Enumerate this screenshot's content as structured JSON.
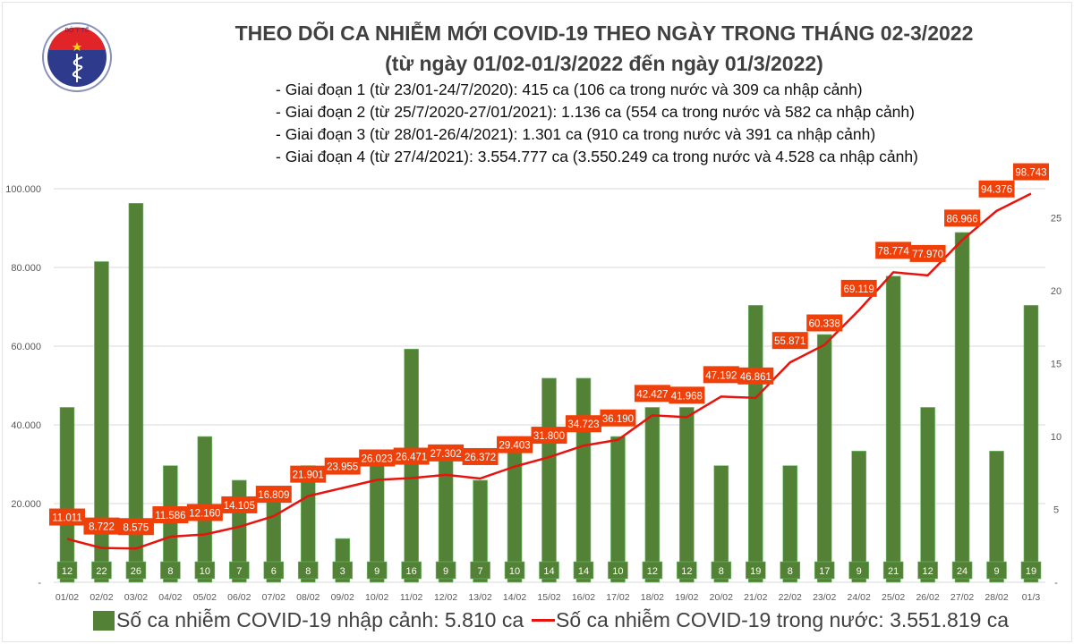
{
  "header": {
    "title": "THEO DÕI CA NHIỄM MỚI COVID-19 THEO NGÀY TRONG THÁNG 02-3/2022",
    "subtitle": "(từ ngày 01/02-01/3/2022 đến ngày 01/3/2022)",
    "notes": [
      "- Giai đoạn 1 (từ 23/01-24/7/2020): 415 ca (106 ca trong nước và 309 ca nhập cảnh)",
      "- Giai đoạn 2 (từ 25/7/2020-27/01/2021): 1.136 ca (554 ca trong nước và 582 ca nhập cảnh)",
      "- Giai đoạn 3 (từ 28/01-26/4/2021): 1.301 ca (910 ca trong nước và 391 ca nhập cảnh)",
      "- Giai đoạn 4 (từ 27/4/2021): 3.554.777 ca (3.550.249 ca trong nước và 4.528 ca nhập cảnh)"
    ],
    "logo_text": [
      "BỘ Y TẾ",
      "MINISTRY OF HEALTH"
    ]
  },
  "chart_data": {
    "type": "bar+line",
    "categories": [
      "01/02",
      "02/02",
      "03/02",
      "04/02",
      "05/02",
      "06/02",
      "07/02",
      "08/02",
      "09/02",
      "10/02",
      "11/02",
      "12/02",
      "13/02",
      "14/02",
      "15/02",
      "16/02",
      "17/02",
      "18/02",
      "19/02",
      "20/02",
      "21/02",
      "22/02",
      "23/02",
      "24/02",
      "25/02",
      "26/02",
      "27/02",
      "28/02",
      "01/3"
    ],
    "series": [
      {
        "name": "Số ca nhiễm COVID-19 nhập cảnh: 5.810 ca",
        "type": "bar",
        "axis": "right",
        "color": "#538135",
        "values": [
          12,
          22,
          26,
          8,
          10,
          7,
          6,
          8,
          3,
          9,
          16,
          9,
          7,
          10,
          14,
          14,
          10,
          12,
          12,
          8,
          19,
          8,
          17,
          9,
          21,
          12,
          24,
          9,
          19
        ],
        "labels": [
          "12",
          "22",
          "26",
          "8",
          "10",
          "7",
          "6",
          "8",
          "3",
          "9",
          "16",
          "9",
          "7",
          "10",
          "14",
          "14",
          "10",
          "12",
          "12",
          "8",
          "19",
          "8",
          "17",
          "9",
          "21",
          "12",
          "24",
          "9",
          "19"
        ]
      },
      {
        "name": "Số ca nhiễm COVID-19 trong nước: 3.551.819 ca",
        "type": "line",
        "axis": "left",
        "color": "#e8130c",
        "values": [
          11011,
          8722,
          8575,
          11586,
          12160,
          14105,
          16809,
          21901,
          23955,
          26023,
          26471,
          27302,
          26372,
          29403,
          31800,
          34723,
          36190,
          42427,
          41968,
          47192,
          46861,
          55871,
          60338,
          69119,
          78774,
          77970,
          86966,
          94376,
          98743
        ],
        "labels": [
          "11.011",
          "8.722",
          "8.575",
          "11.586",
          "12.160",
          "14.105",
          "16.809",
          "21.901",
          "23.955",
          "26.023",
          "26.471",
          "27.302",
          "26.372",
          "29.403",
          "31.800",
          "34.723",
          "36.190",
          "42.427",
          "41.968",
          "47.192",
          "46.861",
          "55.871",
          "60.338",
          "69.119",
          "78.774",
          "77.970",
          "86.966",
          "94.376",
          "98.743"
        ]
      }
    ],
    "y_left": {
      "range": [
        0,
        100000
      ],
      "ticks": [
        "-",
        "20.000",
        "40.000",
        "60.000",
        "80.000",
        "100.000"
      ]
    },
    "y_right": {
      "range": [
        0,
        27
      ],
      "ticks": [
        "-",
        "5",
        "10",
        "15",
        "20",
        "25"
      ]
    },
    "grid": true,
    "legend": "bottom",
    "label_color": "#f0400a"
  }
}
